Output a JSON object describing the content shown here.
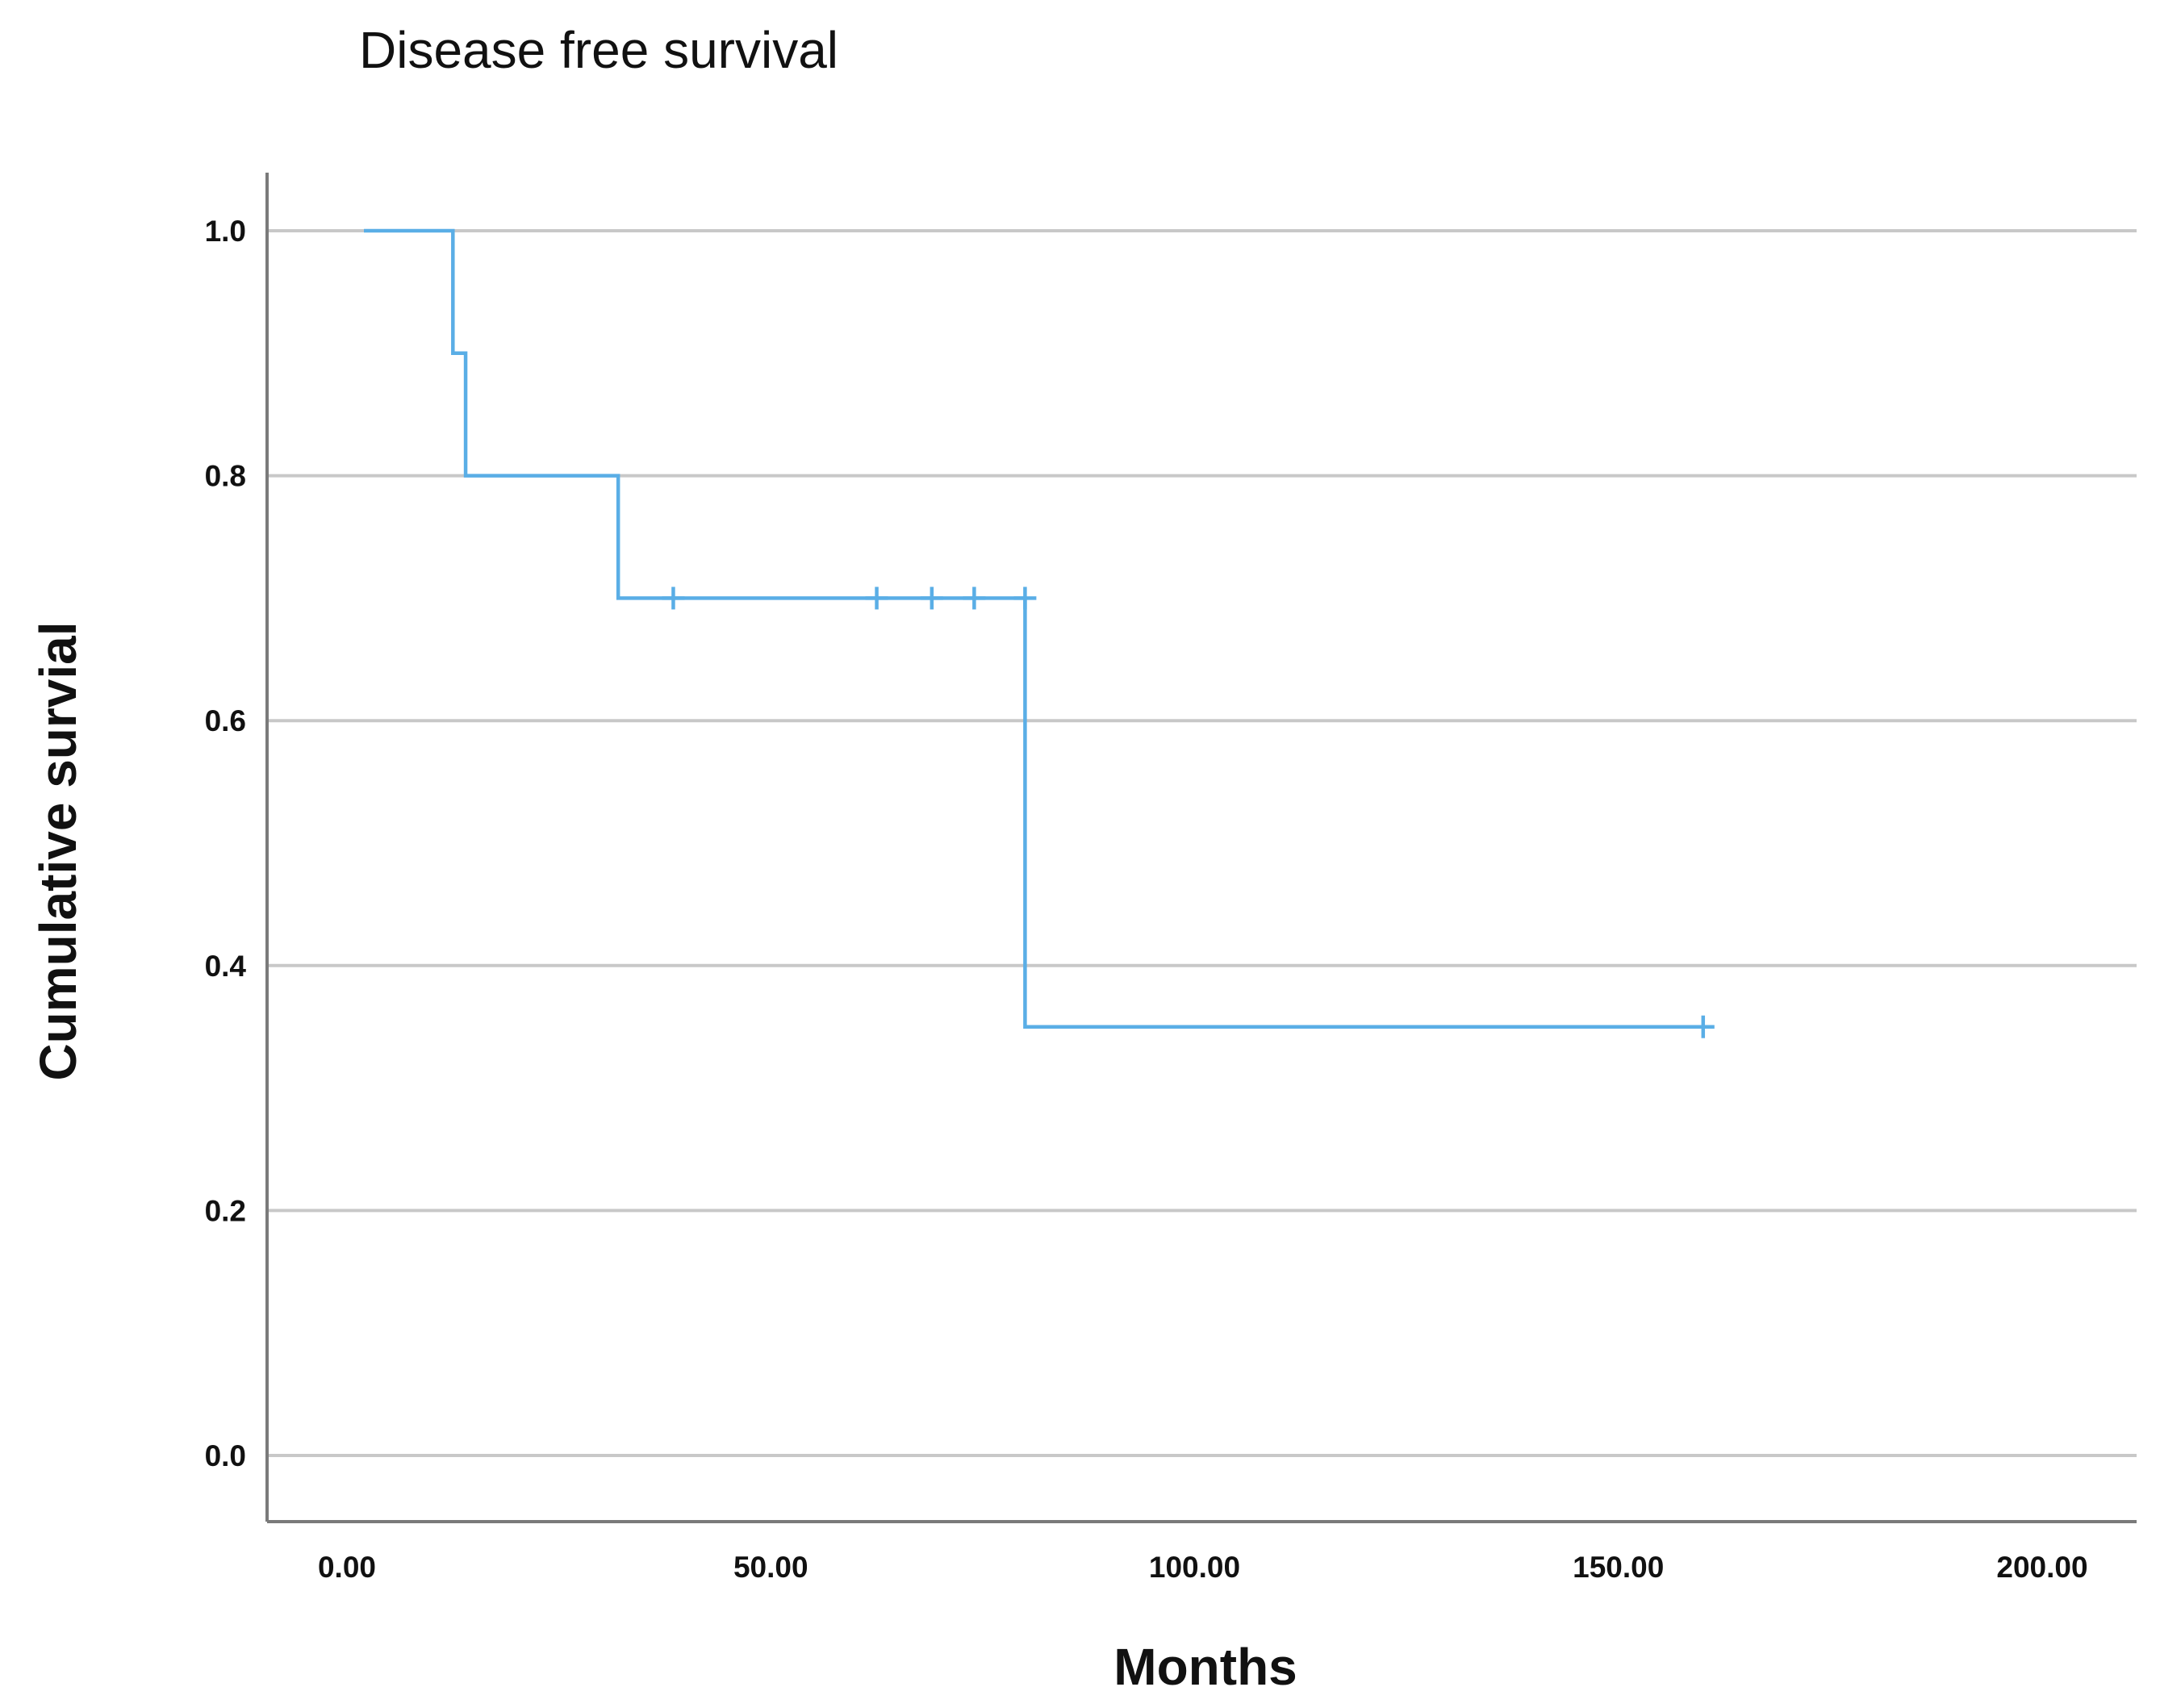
{
  "chart_data": {
    "type": "line",
    "subtype": "kaplan-meier-step",
    "title": "Disease free survival",
    "xlabel": "Months",
    "ylabel": "Cumulative survial",
    "xlim": [
      0,
      200
    ],
    "ylim": [
      0,
      1.0
    ],
    "x_ticks": [
      "0.00",
      "50.00",
      "100.00",
      "150.00",
      "200.00"
    ],
    "y_ticks": [
      "0.0",
      "0.2",
      "0.4",
      "0.6",
      "0.8",
      "1.0"
    ],
    "grid": "horizontal",
    "legend": "none",
    "color": "#5aaee6",
    "steps": [
      {
        "x": 2,
        "y": 1.0
      },
      {
        "x": 12.5,
        "y": 0.9
      },
      {
        "x": 14,
        "y": 0.8
      },
      {
        "x": 32,
        "y": 0.7
      },
      {
        "x": 80,
        "y": 0.35
      },
      {
        "x": 160,
        "y": 0.35
      }
    ],
    "censored": [
      {
        "x": 38.5,
        "y": 0.7
      },
      {
        "x": 62.5,
        "y": 0.7
      },
      {
        "x": 69,
        "y": 0.7
      },
      {
        "x": 74,
        "y": 0.7
      },
      {
        "x": 80,
        "y": 0.7
      },
      {
        "x": 160,
        "y": 0.35
      }
    ]
  }
}
